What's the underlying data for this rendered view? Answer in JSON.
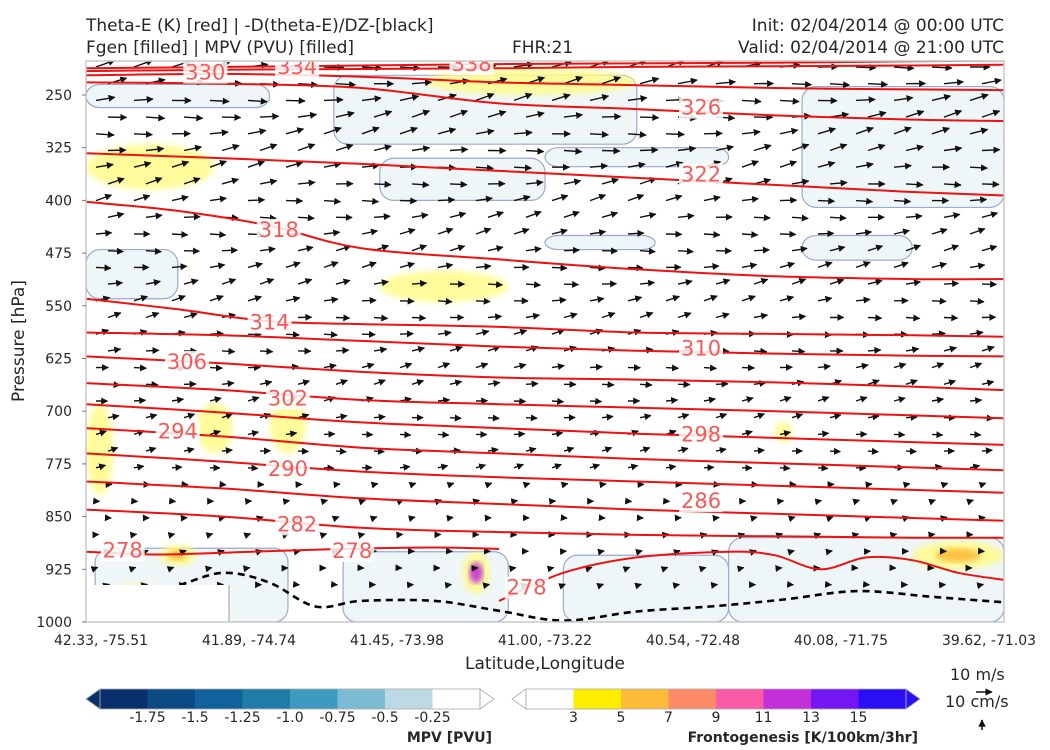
{
  "header": {
    "title_left_1": "Theta-E (K) [red] | -D(theta-E)/DZ-[black]",
    "title_left_2": "Fgen [filled] | MPV (PVU) [filled]",
    "title_center": "FHR:21",
    "title_right_1": "Init: 02/04/2014 @ 00:00 UTC",
    "title_right_2": "Valid: 02/04/2014 @ 21:00 UTC"
  },
  "chart_data": {
    "type": "cross-section",
    "xlabel": "Latitude,Longitude",
    "ylabel": "Pressure [hPa]",
    "y_inverted": true,
    "ylim": [
      1000,
      200
    ],
    "x_ticks": [
      "42.33, -75.51",
      "41.89, -74.74",
      "41.45, -73.98",
      "41.00, -73.22",
      "40.54, -72.48",
      "40.08, -71.75",
      "39.62, -71.03"
    ],
    "y_ticks": [
      250,
      325,
      400,
      475,
      550,
      625,
      700,
      775,
      850,
      925,
      1000
    ],
    "theta_e_contours": [
      {
        "level": 338,
        "label": "338",
        "points": [
          [
            0,
            212
          ],
          [
            0.15,
            210
          ],
          [
            0.3,
            208
          ],
          [
            0.45,
            206
          ],
          [
            0.6,
            205
          ],
          [
            0.75,
            204
          ],
          [
            0.9,
            202
          ],
          [
            1,
            201
          ]
        ]
      },
      {
        "level": 334,
        "label": "334",
        "points": [
          [
            0,
            216
          ],
          [
            0.15,
            214
          ],
          [
            0.3,
            213
          ],
          [
            0.45,
            212
          ],
          [
            0.6,
            210
          ],
          [
            0.75,
            209
          ],
          [
            0.9,
            208
          ],
          [
            1,
            207
          ]
        ]
      },
      {
        "level": 330,
        "label": "330",
        "points": [
          [
            0,
            222
          ],
          [
            0.15,
            220
          ],
          [
            0.3,
            224
          ],
          [
            0.45,
            232
          ],
          [
            0.6,
            236
          ],
          [
            0.75,
            240
          ],
          [
            0.9,
            242
          ],
          [
            1,
            243
          ]
        ]
      },
      {
        "level": 326,
        "label": "326",
        "points": [
          [
            0,
            232
          ],
          [
            0.15,
            234
          ],
          [
            0.3,
            240
          ],
          [
            0.45,
            262
          ],
          [
            0.6,
            270
          ],
          [
            0.75,
            279
          ],
          [
            0.9,
            285
          ],
          [
            1,
            287
          ]
        ]
      },
      {
        "level": 322,
        "label": "322",
        "points": [
          [
            0,
            333
          ],
          [
            0.15,
            340
          ],
          [
            0.3,
            348
          ],
          [
            0.45,
            358
          ],
          [
            0.6,
            368
          ],
          [
            0.75,
            378
          ],
          [
            0.9,
            388
          ],
          [
            1,
            393
          ]
        ]
      },
      {
        "level": 318,
        "label": "318",
        "points": [
          [
            0,
            402
          ],
          [
            0.1,
            415
          ],
          [
            0.2,
            436
          ],
          [
            0.3,
            468
          ],
          [
            0.45,
            484
          ],
          [
            0.6,
            498
          ],
          [
            0.75,
            508
          ],
          [
            0.9,
            512
          ],
          [
            1,
            512
          ]
        ]
      },
      {
        "level": 314,
        "label": "314",
        "points": [
          [
            0,
            540
          ],
          [
            0.1,
            555
          ],
          [
            0.2,
            572
          ],
          [
            0.3,
            576
          ],
          [
            0.45,
            580
          ],
          [
            0.6,
            588
          ],
          [
            0.75,
            590
          ],
          [
            0.9,
            592
          ],
          [
            1,
            594
          ]
        ]
      },
      {
        "level": 310,
        "label": "310",
        "points": [
          [
            0,
            588
          ],
          [
            0.15,
            592
          ],
          [
            0.3,
            600
          ],
          [
            0.45,
            608
          ],
          [
            0.6,
            614
          ],
          [
            0.75,
            618
          ],
          [
            0.9,
            621
          ],
          [
            1,
            622
          ]
        ]
      },
      {
        "level": 306,
        "label": "306",
        "points": [
          [
            0,
            622
          ],
          [
            0.15,
            632
          ],
          [
            0.3,
            644
          ],
          [
            0.45,
            652
          ],
          [
            0.6,
            655
          ],
          [
            0.75,
            659
          ],
          [
            0.9,
            665
          ],
          [
            1,
            670
          ]
        ]
      },
      {
        "level": 302,
        "label": "302",
        "points": [
          [
            0,
            660
          ],
          [
            0.15,
            670
          ],
          [
            0.3,
            684
          ],
          [
            0.45,
            690
          ],
          [
            0.6,
            695
          ],
          [
            0.75,
            700
          ],
          [
            0.9,
            706
          ],
          [
            1,
            710
          ]
        ]
      },
      {
        "level": 298,
        "label": "298",
        "points": [
          [
            0,
            690
          ],
          [
            0.15,
            702
          ],
          [
            0.3,
            716
          ],
          [
            0.45,
            724
          ],
          [
            0.6,
            732
          ],
          [
            0.75,
            738
          ],
          [
            0.9,
            744
          ],
          [
            1,
            748
          ]
        ]
      },
      {
        "level": 294,
        "label": "294",
        "points": [
          [
            0,
            724
          ],
          [
            0.15,
            736
          ],
          [
            0.3,
            752
          ],
          [
            0.45,
            760
          ],
          [
            0.6,
            768
          ],
          [
            0.75,
            774
          ],
          [
            0.9,
            780
          ],
          [
            1,
            784
          ]
        ]
      },
      {
        "level": 290,
        "label": "290",
        "points": [
          [
            0,
            760
          ],
          [
            0.15,
            772
          ],
          [
            0.3,
            786
          ],
          [
            0.45,
            794
          ],
          [
            0.6,
            800
          ],
          [
            0.75,
            806
          ],
          [
            0.9,
            812
          ],
          [
            1,
            816
          ]
        ]
      },
      {
        "level": 286,
        "label": "286",
        "points": [
          [
            0,
            800
          ],
          [
            0.15,
            810
          ],
          [
            0.3,
            824
          ],
          [
            0.45,
            832
          ],
          [
            0.6,
            840
          ],
          [
            0.75,
            846
          ],
          [
            0.9,
            852
          ],
          [
            1,
            856
          ]
        ]
      },
      {
        "level": 282,
        "label": "282",
        "points": [
          [
            0,
            840
          ],
          [
            0.15,
            850
          ],
          [
            0.3,
            866
          ],
          [
            0.45,
            872
          ],
          [
            0.6,
            876
          ],
          [
            0.75,
            878
          ],
          [
            0.9,
            880
          ],
          [
            1,
            880
          ]
        ]
      },
      {
        "level": 278,
        "label": "278",
        "points": [
          [
            0,
            900
          ],
          [
            0.08,
            904
          ],
          [
            0.18,
            900
          ],
          [
            0.28,
            896
          ],
          [
            0.38,
            894
          ],
          [
            0.45,
            896
          ]
        ]
      },
      {
        "level": 278,
        "label": "278",
        "points": [
          [
            0.45,
            970
          ],
          [
            0.52,
            930
          ],
          [
            0.6,
            908
          ],
          [
            0.7,
            900
          ],
          [
            0.75,
            905
          ],
          [
            0.8,
            925
          ],
          [
            0.85,
            908
          ],
          [
            0.9,
            912
          ],
          [
            0.95,
            930
          ],
          [
            1,
            940
          ]
        ]
      }
    ],
    "contour_labels": [
      {
        "label": "330",
        "x": 0.13,
        "p": 218
      },
      {
        "label": "334",
        "x": 0.23,
        "p": 210
      },
      {
        "label": "338",
        "x": 0.42,
        "p": 206
      },
      {
        "label": "326",
        "x": 0.67,
        "p": 268
      },
      {
        "label": "322",
        "x": 0.67,
        "p": 363
      },
      {
        "label": "318",
        "x": 0.21,
        "p": 442
      },
      {
        "label": "314",
        "x": 0.2,
        "p": 574
      },
      {
        "label": "310",
        "x": 0.67,
        "p": 611
      },
      {
        "label": "306",
        "x": 0.11,
        "p": 630
      },
      {
        "label": "302",
        "x": 0.22,
        "p": 682
      },
      {
        "label": "294",
        "x": 0.1,
        "p": 729
      },
      {
        "label": "298",
        "x": 0.67,
        "p": 733
      },
      {
        "label": "290",
        "x": 0.22,
        "p": 782
      },
      {
        "label": "286",
        "x": 0.67,
        "p": 828
      },
      {
        "label": "282",
        "x": 0.23,
        "p": 861
      },
      {
        "label": "278",
        "x": 0.04,
        "p": 898
      },
      {
        "label": "278",
        "x": 0.29,
        "p": 899
      },
      {
        "label": "278",
        "x": 0.48,
        "p": 951
      }
    ],
    "stability_contour": {
      "label": "-D(theta-E)/DZ",
      "points": [
        [
          0,
          955
        ],
        [
          0.05,
          965
        ],
        [
          0.1,
          948
        ],
        [
          0.15,
          930
        ],
        [
          0.2,
          944
        ],
        [
          0.25,
          978
        ],
        [
          0.3,
          970
        ],
        [
          0.38,
          970
        ],
        [
          0.45,
          984
        ],
        [
          0.52,
          998
        ],
        [
          0.6,
          985
        ],
        [
          0.68,
          978
        ],
        [
          0.76,
          968
        ],
        [
          0.84,
          956
        ],
        [
          0.92,
          964
        ],
        [
          1,
          972
        ]
      ]
    },
    "mpv_regions": [
      {
        "x0": 0,
        "x1": 0.2,
        "p0": 235,
        "p1": 268
      },
      {
        "x0": 0.27,
        "x1": 0.6,
        "p0": 222,
        "p1": 320
      },
      {
        "x0": 0.32,
        "x1": 0.5,
        "p0": 340,
        "p1": 400
      },
      {
        "x0": 0.5,
        "x1": 0.7,
        "p0": 325,
        "p1": 352
      },
      {
        "x0": 0.78,
        "x1": 1,
        "p0": 238,
        "p1": 410
      },
      {
        "x0": 0,
        "x1": 0.1,
        "p0": 470,
        "p1": 540
      },
      {
        "x0": 0.5,
        "x1": 0.62,
        "p0": 450,
        "p1": 470
      },
      {
        "x0": 0.78,
        "x1": 0.9,
        "p0": 450,
        "p1": 485
      },
      {
        "x0": 0.01,
        "x1": 0.22,
        "p0": 895,
        "p1": 1000
      },
      {
        "x0": 0.28,
        "x1": 0.46,
        "p0": 900,
        "p1": 1000
      },
      {
        "x0": 0.52,
        "x1": 0.7,
        "p0": 905,
        "p1": 1000
      },
      {
        "x0": 0.7,
        "x1": 1,
        "p0": 880,
        "p1": 1000
      }
    ],
    "fgen_regions": [
      {
        "x0": 0.0,
        "x1": 0.14,
        "p0": 320,
        "p1": 385,
        "v": 3
      },
      {
        "x0": 0.32,
        "x1": 0.46,
        "p0": 500,
        "p1": 545,
        "v": 3
      },
      {
        "x0": 0.37,
        "x1": 0.6,
        "p0": 212,
        "p1": 250,
        "v": 3
      },
      {
        "x0": 0.0,
        "x1": 0.03,
        "p0": 690,
        "p1": 820,
        "v": 3
      },
      {
        "x0": 0.12,
        "x1": 0.16,
        "p0": 688,
        "p1": 760,
        "v": 3
      },
      {
        "x0": 0.2,
        "x1": 0.24,
        "p0": 680,
        "p1": 760,
        "v": 3
      },
      {
        "x0": 0.75,
        "x1": 0.77,
        "p0": 715,
        "p1": 745,
        "v": 3
      },
      {
        "x0": 0.08,
        "x1": 0.12,
        "p0": 890,
        "p1": 920,
        "v": 7
      },
      {
        "x0": 0.41,
        "x1": 0.44,
        "p0": 900,
        "p1": 960,
        "v": 11
      },
      {
        "x0": 0.9,
        "x1": 1,
        "p0": 885,
        "p1": 925,
        "v": 7
      },
      {
        "x0": 0.03,
        "x1": 0.08,
        "p0": 945,
        "p1": 985,
        "v": 9
      }
    ],
    "wind_vectors_note": "circulation vectors along the section",
    "mpv_colorbar": {
      "title": "MPV [PVU]",
      "ticks": [
        "-1.75",
        "-1.5",
        "-1.25",
        "-1.0",
        "-0.75",
        "-0.5",
        "-0.25"
      ],
      "colors": [
        "#08306b",
        "#0b4a83",
        "#10629a",
        "#1f7ca6",
        "#3f9ac2",
        "#7bbbd3",
        "#bdd9e3",
        "#ffffff"
      ]
    },
    "fgen_colorbar": {
      "title": "Frontogenesis [K/100km/3hr]",
      "ticks": [
        "3",
        "5",
        "7",
        "9",
        "11",
        "13",
        "15"
      ],
      "colors": [
        "#ffffff",
        "#ffee00",
        "#fdbb3a",
        "#fc8c68",
        "#f95aa6",
        "#c32fd9",
        "#7316f2",
        "#2b10f5"
      ]
    },
    "reference_vectors": {
      "horizontal": "10 m/s",
      "vertical": "10 cm/s"
    }
  }
}
